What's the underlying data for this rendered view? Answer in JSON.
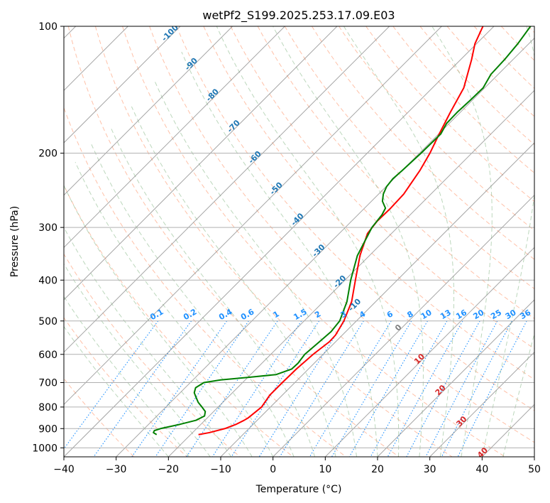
{
  "chart_data": {
    "type": "line",
    "subtype": "skew-T log-P diagram",
    "title": "wetPf2_S199.2025.253.17.09.E03",
    "xlabel": "Temperature (°C)",
    "ylabel": "Pressure (hPa)",
    "xlim": [
      -40,
      50
    ],
    "ylim": [
      1050,
      100
    ],
    "y_scale": "log",
    "grid": true,
    "x_ticks": [
      -40,
      -30,
      -20,
      -10,
      0,
      10,
      20,
      30,
      40,
      50
    ],
    "y_ticks": [
      100,
      200,
      300,
      400,
      500,
      600,
      700,
      800,
      900,
      1000
    ],
    "isotherm_labels": [
      "-100",
      "-90",
      "-80",
      "-70",
      "-60",
      "-50",
      "-40",
      "-30",
      "-20",
      "-10",
      "0",
      "10",
      "20",
      "30",
      "40"
    ],
    "mixing_ratio_labels": [
      "0.1",
      "0.2",
      "0.4",
      "0.6",
      "1",
      "1.5",
      "2",
      "3",
      "4",
      "6",
      "8",
      "10",
      "13",
      "16",
      "20",
      "25",
      "30",
      "36"
    ],
    "colors": {
      "temperature": "#ff0000",
      "dewpoint": "#008000",
      "isotherm_label_cold": "#1f77b4",
      "isotherm_label_zero": "#808080",
      "isotherm_label_warm": "#d62728",
      "mixing_ratio": "#1e90ff",
      "dry_adiabat": "#ffa07a",
      "moist_adiabat": "#8fbc8f",
      "skewed_isotherm": "#808080"
    },
    "series": [
      {
        "key": "temperature",
        "pressure": [
          930,
          920,
          900,
          880,
          860,
          850,
          800,
          750,
          700,
          650,
          600,
          560,
          540,
          500,
          450,
          400,
          350,
          310,
          290,
          270,
          250,
          220,
          200,
          180,
          160,
          140,
          120,
          110,
          100
        ],
        "values": [
          -18.5,
          -16.8,
          -14.6,
          -13.3,
          -12.5,
          -12.2,
          -11.7,
          -12.4,
          -12.4,
          -12.3,
          -11.9,
          -11.2,
          -11.3,
          -12.4,
          -14.6,
          -18.0,
          -21.8,
          -24.6,
          -25.1,
          -25.0,
          -25.2,
          -26.6,
          -28.0,
          -29.9,
          -31.9,
          -34.0,
          -37.9,
          -40.3,
          -42.1
        ]
      },
      {
        "key": "dewpoint",
        "pressure": [
          930,
          920,
          910,
          900,
          880,
          860,
          840,
          820,
          800,
          780,
          760,
          740,
          720,
          700,
          690,
          680,
          670,
          650,
          630,
          600,
          560,
          530,
          500,
          450,
          400,
          350,
          300,
          280,
          270,
          260,
          250,
          240,
          230,
          220,
          200,
          180,
          170,
          160,
          150,
          140,
          130,
          120,
          110,
          100
        ],
        "values": [
          -26.5,
          -27.5,
          -27.7,
          -26.9,
          -24.1,
          -21.7,
          -20.9,
          -21.6,
          -23.1,
          -24.7,
          -26.0,
          -27.3,
          -28.0,
          -27.4,
          -24.7,
          -19.7,
          -15.1,
          -13.2,
          -13.1,
          -13.5,
          -13.1,
          -12.8,
          -13.2,
          -15.5,
          -18.9,
          -22.3,
          -24.9,
          -25.4,
          -26.0,
          -27.9,
          -29.1,
          -29.9,
          -30.2,
          -30.0,
          -29.7,
          -29.6,
          -30.5,
          -30.6,
          -30.4,
          -30.3,
          -31.4,
          -31.6,
          -32.1,
          -33.0
        ]
      }
    ]
  }
}
